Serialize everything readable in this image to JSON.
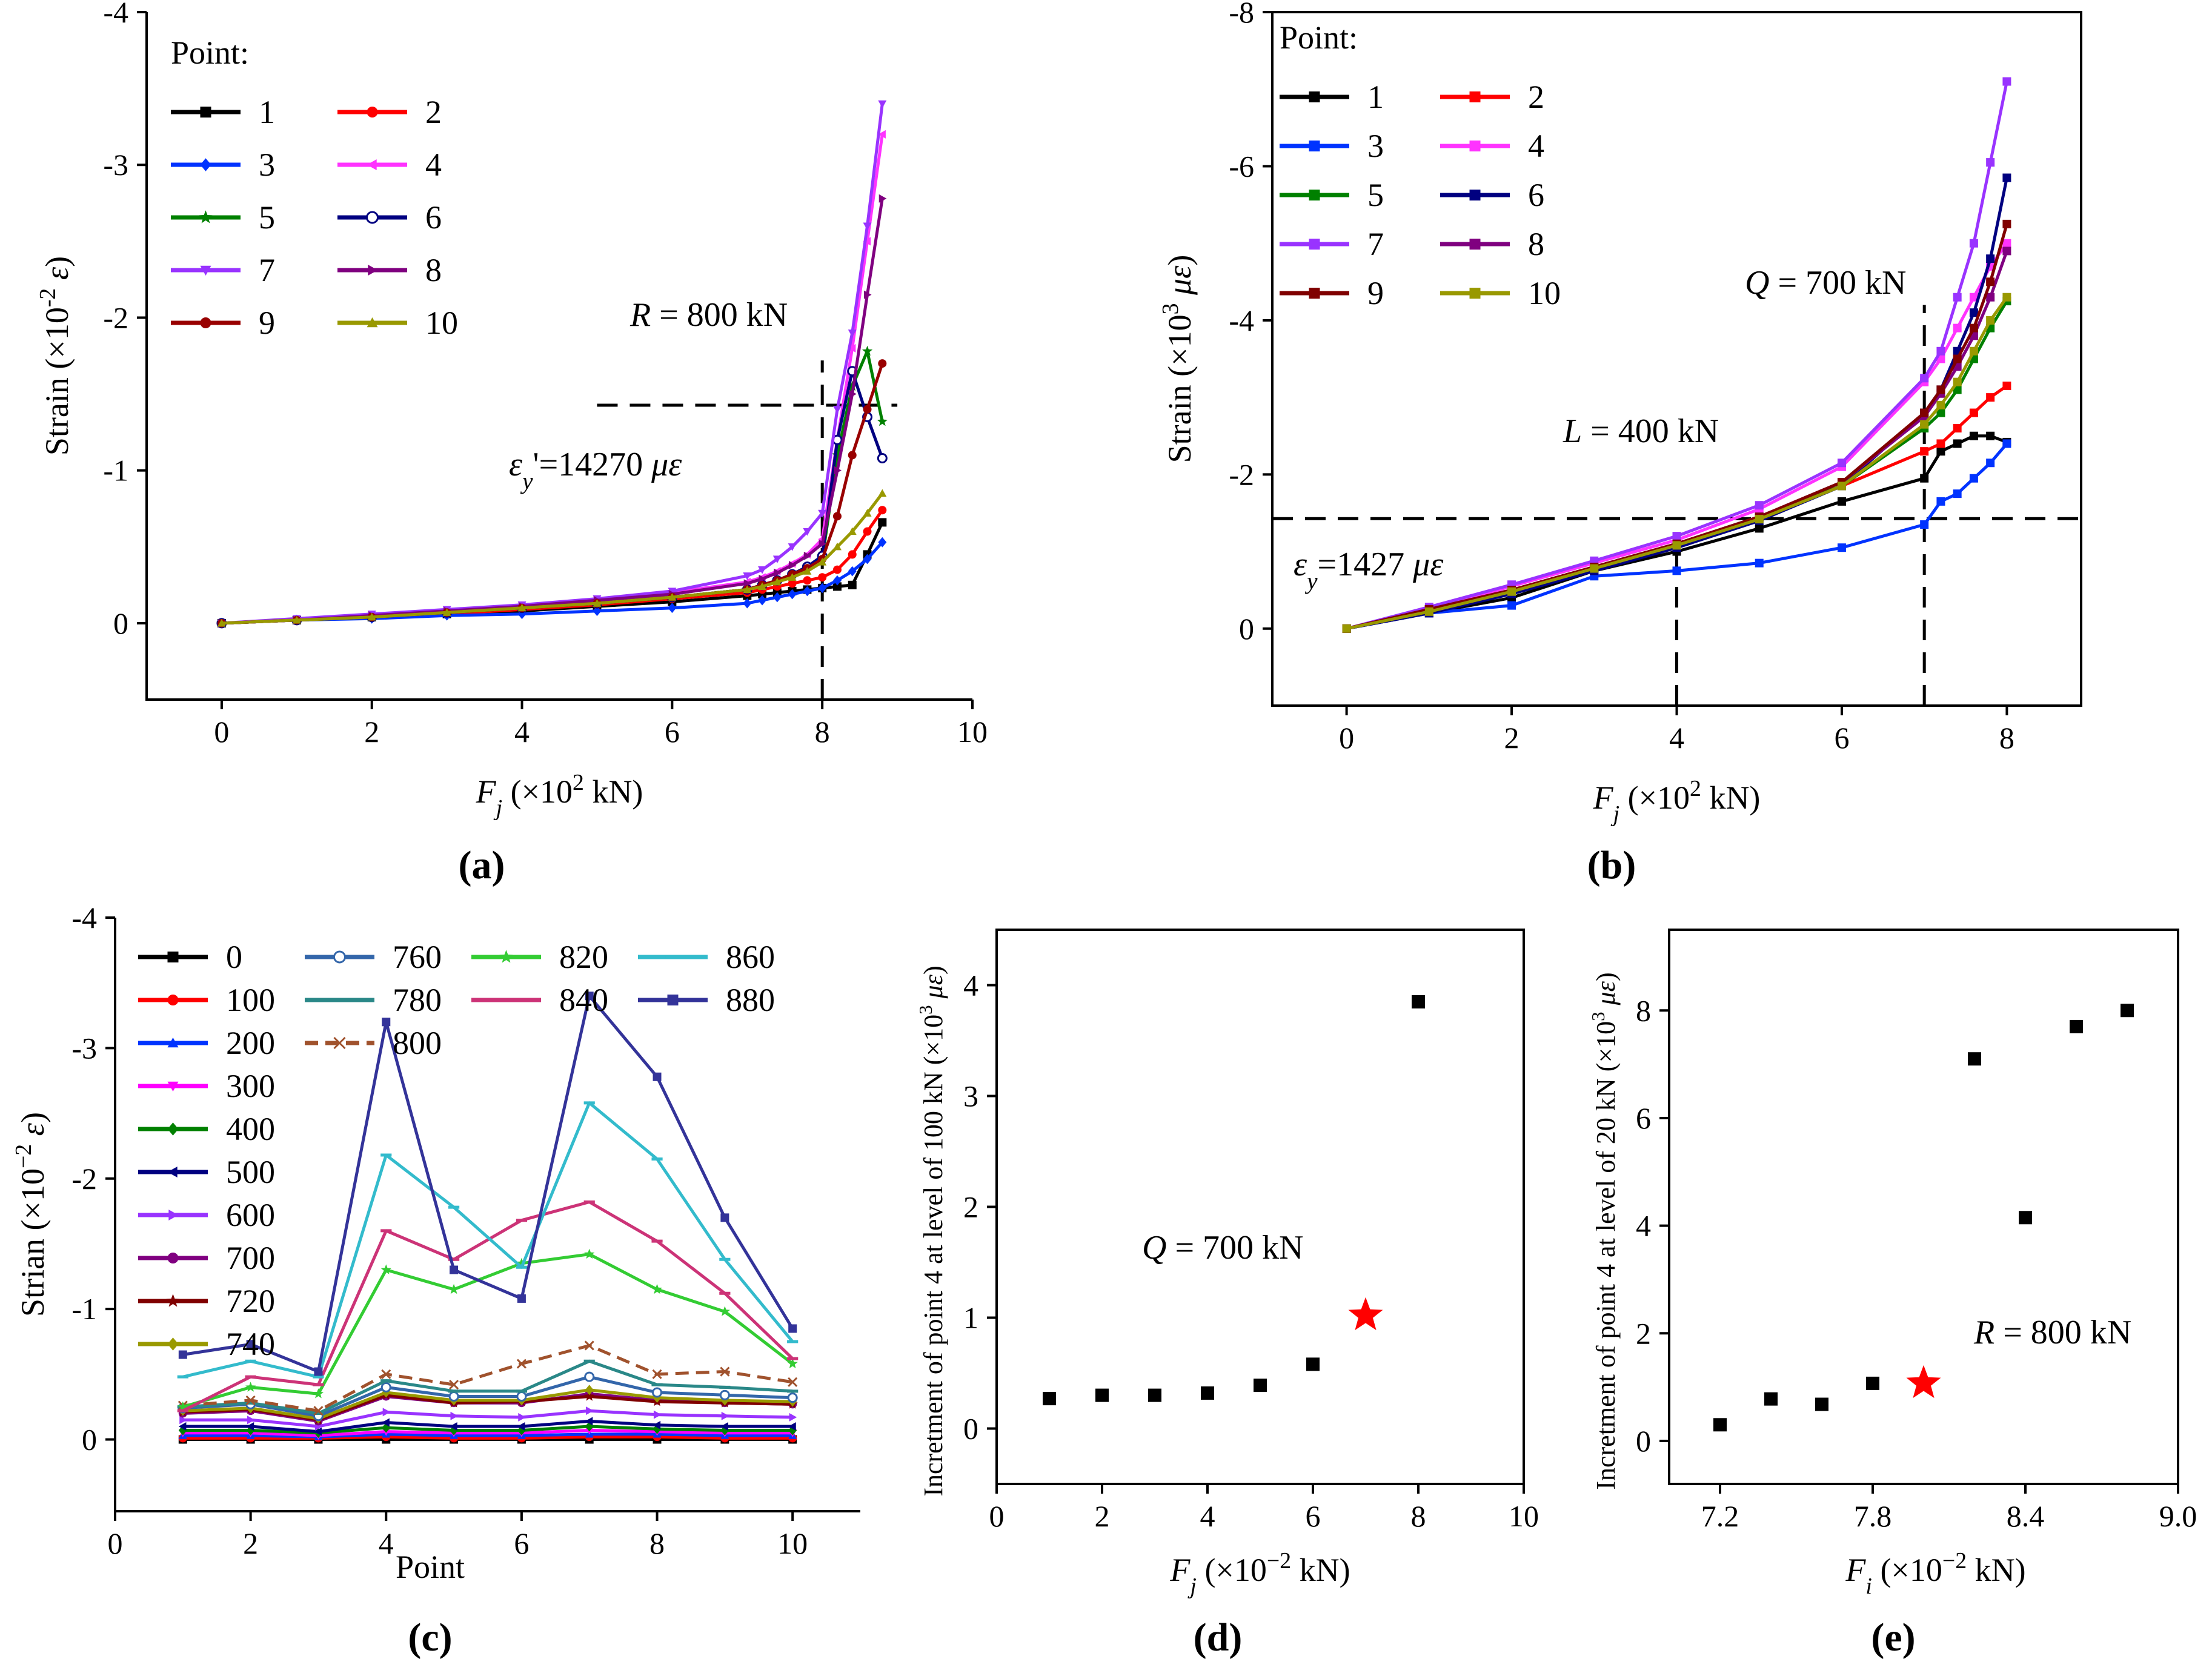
{
  "chart_data": [
    {
      "id": "a",
      "type": "line",
      "panel_label": "(a)",
      "xlabel": "F_j (×10^2 kN)",
      "ylabel": "Strain (×10^-2 ε)",
      "xlim": [
        -1,
        10
      ],
      "ylim": [
        0.5,
        -4
      ],
      "xticks": [
        0,
        2,
        4,
        6,
        8,
        10
      ],
      "yticks": [
        0,
        -1,
        -2,
        -3,
        -4
      ],
      "legend_title": "Point:",
      "x": [
        0,
        1,
        2,
        3,
        4,
        5,
        6,
        7,
        7.2,
        7.4,
        7.6,
        7.8,
        8,
        8.2,
        8.4,
        8.6,
        8.8
      ],
      "series": [
        {
          "name": "1",
          "color": "#000000",
          "marker": "square",
          "values": [
            0,
            -0.02,
            -0.04,
            -0.06,
            -0.08,
            -0.11,
            -0.14,
            -0.18,
            -0.19,
            -0.2,
            -0.21,
            -0.22,
            -0.23,
            -0.24,
            -0.25,
            -0.45,
            -0.66
          ]
        },
        {
          "name": "2",
          "color": "#ff0000",
          "marker": "circle",
          "values": [
            0,
            -0.02,
            -0.04,
            -0.06,
            -0.09,
            -0.12,
            -0.16,
            -0.2,
            -0.22,
            -0.24,
            -0.26,
            -0.28,
            -0.3,
            -0.35,
            -0.45,
            -0.6,
            -0.74
          ]
        },
        {
          "name": "3",
          "color": "#0033ff",
          "marker": "diamond",
          "values": [
            0,
            -0.02,
            -0.03,
            -0.05,
            -0.06,
            -0.08,
            -0.1,
            -0.13,
            -0.15,
            -0.17,
            -0.19,
            -0.21,
            -0.23,
            -0.28,
            -0.34,
            -0.42,
            -0.53
          ]
        },
        {
          "name": "4",
          "color": "#ff33ff",
          "marker": "triangle-left",
          "values": [
            0,
            -0.02,
            -0.05,
            -0.08,
            -0.11,
            -0.15,
            -0.2,
            -0.27,
            -0.3,
            -0.34,
            -0.39,
            -0.45,
            -0.55,
            -1.2,
            -1.8,
            -2.5,
            -3.2
          ]
        },
        {
          "name": "5",
          "color": "#008000",
          "marker": "star",
          "values": [
            0,
            -0.02,
            -0.04,
            -0.07,
            -0.1,
            -0.13,
            -0.17,
            -0.22,
            -0.25,
            -0.28,
            -0.32,
            -0.37,
            -0.42,
            -1.1,
            -1.55,
            -1.78,
            -1.32
          ]
        },
        {
          "name": "6",
          "color": "#000080",
          "marker": "circle-open",
          "values": [
            0,
            -0.02,
            -0.04,
            -0.07,
            -0.1,
            -0.13,
            -0.17,
            -0.22,
            -0.25,
            -0.28,
            -0.32,
            -0.37,
            -0.44,
            -1.2,
            -1.65,
            -1.35,
            -1.08
          ]
        },
        {
          "name": "7",
          "color": "#9933ff",
          "marker": "triangle-down",
          "values": [
            0,
            -0.03,
            -0.06,
            -0.09,
            -0.12,
            -0.16,
            -0.21,
            -0.31,
            -0.35,
            -0.42,
            -0.5,
            -0.6,
            -0.72,
            -1.4,
            -1.9,
            -2.6,
            -3.4
          ]
        },
        {
          "name": "8",
          "color": "#800080",
          "marker": "triangle-right",
          "values": [
            0,
            -0.02,
            -0.05,
            -0.08,
            -0.11,
            -0.15,
            -0.19,
            -0.26,
            -0.29,
            -0.33,
            -0.38,
            -0.44,
            -0.52,
            -1.0,
            -1.5,
            -2.15,
            -2.78
          ]
        },
        {
          "name": "9",
          "color": "#990000",
          "marker": "circle",
          "values": [
            0,
            -0.02,
            -0.04,
            -0.07,
            -0.1,
            -0.13,
            -0.17,
            -0.22,
            -0.25,
            -0.28,
            -0.32,
            -0.36,
            -0.42,
            -0.7,
            -1.1,
            -1.4,
            -1.7
          ]
        },
        {
          "name": "10",
          "color": "#999900",
          "marker": "triangle-up",
          "values": [
            0,
            -0.02,
            -0.04,
            -0.07,
            -0.1,
            -0.13,
            -0.17,
            -0.22,
            -0.24,
            -0.27,
            -0.3,
            -0.34,
            -0.4,
            -0.5,
            -0.6,
            -0.72,
            -0.85
          ]
        }
      ],
      "annotations": [
        {
          "text": "R = 800 kN"
        },
        {
          "text": "ε_y'=14270 με"
        }
      ],
      "reference_lines": [
        {
          "orientation": "vertical",
          "x": 8,
          "y_range": [
            0.5,
            -1.72
          ]
        },
        {
          "orientation": "horizontal",
          "y": -1.427,
          "x_range": [
            5,
            9
          ]
        }
      ]
    },
    {
      "id": "b",
      "type": "line",
      "panel_label": "(b)",
      "xlabel": "F_j (×10^2 kN)",
      "ylabel": "Strain (×10^3 με)",
      "xlim": [
        -0.9,
        8.9
      ],
      "ylim": [
        1,
        -8
      ],
      "xticks": [
        0,
        2,
        4,
        6,
        8
      ],
      "yticks": [
        0,
        -2,
        -4,
        -6,
        -8
      ],
      "legend_title": "Point:",
      "x": [
        0,
        1,
        2,
        3,
        4,
        5,
        6,
        7,
        7.2,
        7.4,
        7.6,
        7.8,
        8
      ],
      "series": [
        {
          "name": "1",
          "color": "#000000",
          "marker": "square",
          "values": [
            0,
            -0.2,
            -0.4,
            -0.75,
            -1.0,
            -1.3,
            -1.65,
            -1.95,
            -2.3,
            -2.4,
            -2.5,
            -2.5,
            -2.42
          ]
        },
        {
          "name": "2",
          "color": "#ff0000",
          "marker": "square",
          "values": [
            0,
            -0.25,
            -0.5,
            -0.8,
            -1.1,
            -1.45,
            -1.85,
            -2.3,
            -2.4,
            -2.6,
            -2.8,
            -3.0,
            -3.15
          ]
        },
        {
          "name": "3",
          "color": "#0033ff",
          "marker": "square",
          "values": [
            0,
            -0.2,
            -0.3,
            -0.68,
            -0.75,
            -0.85,
            -1.05,
            -1.35,
            -1.65,
            -1.75,
            -1.95,
            -2.15,
            -2.4
          ]
        },
        {
          "name": "4",
          "color": "#ff33ff",
          "marker": "square",
          "values": [
            0,
            -0.25,
            -0.55,
            -0.85,
            -1.15,
            -1.55,
            -2.1,
            -3.2,
            -3.5,
            -3.9,
            -4.3,
            -4.7,
            -5.0
          ]
        },
        {
          "name": "5",
          "color": "#008000",
          "marker": "square",
          "values": [
            0,
            -0.25,
            -0.5,
            -0.8,
            -1.1,
            -1.45,
            -1.85,
            -2.6,
            -2.8,
            -3.1,
            -3.5,
            -3.9,
            -4.25
          ]
        },
        {
          "name": "6",
          "color": "#000080",
          "marker": "square",
          "values": [
            0,
            -0.2,
            -0.45,
            -0.75,
            -1.05,
            -1.4,
            -1.85,
            -2.8,
            -3.1,
            -3.6,
            -4.1,
            -4.8,
            -5.85
          ]
        },
        {
          "name": "7",
          "color": "#9933ff",
          "marker": "square",
          "values": [
            0,
            -0.28,
            -0.57,
            -0.88,
            -1.2,
            -1.6,
            -2.15,
            -3.25,
            -3.6,
            -4.3,
            -5.0,
            -6.05,
            -7.1
          ]
        },
        {
          "name": "8",
          "color": "#800080",
          "marker": "square",
          "values": [
            0,
            -0.25,
            -0.5,
            -0.8,
            -1.1,
            -1.45,
            -1.9,
            -2.75,
            -3.05,
            -3.4,
            -3.8,
            -4.3,
            -4.9
          ]
        },
        {
          "name": "9",
          "color": "#800000",
          "marker": "square",
          "values": [
            0,
            -0.25,
            -0.5,
            -0.8,
            -1.1,
            -1.45,
            -1.9,
            -2.8,
            -3.1,
            -3.5,
            -3.9,
            -4.5,
            -5.25
          ]
        },
        {
          "name": "10",
          "color": "#999900",
          "marker": "square",
          "values": [
            0,
            -0.22,
            -0.48,
            -0.78,
            -1.08,
            -1.42,
            -1.85,
            -2.65,
            -2.9,
            -3.2,
            -3.6,
            -4.0,
            -4.3
          ]
        }
      ],
      "annotations": [
        {
          "text": "Q = 700 kN"
        },
        {
          "text": "L = 400 kN"
        },
        {
          "text": "ε_y=1427 με"
        }
      ],
      "reference_lines": [
        {
          "orientation": "vertical",
          "x": 4,
          "y_range": [
            1,
            -1.0
          ]
        },
        {
          "orientation": "vertical",
          "x": 7,
          "y_range": [
            1,
            -4.2
          ]
        },
        {
          "orientation": "horizontal",
          "y": -1.427,
          "x_range": [
            -0.9,
            8.9
          ]
        }
      ]
    },
    {
      "id": "c",
      "type": "line",
      "panel_label": "(c)",
      "xlabel": "Point",
      "ylabel": "Strian (×10^-2 ε)",
      "xlim": [
        0,
        11
      ],
      "ylim": [
        0.55,
        -4
      ],
      "xticks": [
        0,
        2,
        4,
        6,
        8,
        10
      ],
      "yticks": [
        0,
        -1,
        -2,
        -3,
        -4
      ],
      "x": [
        1,
        2,
        3,
        4,
        5,
        6,
        7,
        8,
        9,
        10
      ],
      "series": [
        {
          "name": "0",
          "color": "#000000",
          "marker": "square",
          "values": [
            0,
            0,
            0,
            0,
            0,
            0,
            0,
            0,
            0,
            0
          ]
        },
        {
          "name": "100",
          "color": "#ff0000",
          "marker": "circle",
          "values": [
            -0.01,
            -0.01,
            -0.01,
            -0.02,
            -0.01,
            -0.01,
            -0.02,
            -0.02,
            -0.01,
            -0.01
          ]
        },
        {
          "name": "200",
          "color": "#0033ff",
          "marker": "triangle-up",
          "values": [
            -0.03,
            -0.03,
            -0.02,
            -0.04,
            -0.03,
            -0.03,
            -0.04,
            -0.04,
            -0.03,
            -0.03
          ]
        },
        {
          "name": "300",
          "color": "#ff00ff",
          "marker": "triangle-down",
          "values": [
            -0.05,
            -0.05,
            -0.03,
            -0.06,
            -0.05,
            -0.05,
            -0.07,
            -0.06,
            -0.05,
            -0.05
          ]
        },
        {
          "name": "400",
          "color": "#008000",
          "marker": "diamond",
          "values": [
            -0.07,
            -0.07,
            -0.05,
            -0.09,
            -0.07,
            -0.07,
            -0.1,
            -0.08,
            -0.07,
            -0.07
          ]
        },
        {
          "name": "500",
          "color": "#000080",
          "marker": "triangle-left",
          "values": [
            -0.1,
            -0.1,
            -0.06,
            -0.13,
            -0.1,
            -0.1,
            -0.14,
            -0.11,
            -0.1,
            -0.1
          ]
        },
        {
          "name": "600",
          "color": "#9933ff",
          "marker": "triangle-right",
          "values": [
            -0.15,
            -0.15,
            -0.1,
            -0.21,
            -0.18,
            -0.17,
            -0.22,
            -0.19,
            -0.18,
            -0.17
          ]
        },
        {
          "name": "700",
          "color": "#800080",
          "marker": "circle",
          "values": [
            -0.2,
            -0.22,
            -0.14,
            -0.33,
            -0.28,
            -0.28,
            -0.35,
            -0.3,
            -0.28,
            -0.27
          ]
        },
        {
          "name": "720",
          "color": "#800000",
          "marker": "star",
          "values": [
            -0.21,
            -0.23,
            -0.15,
            -0.34,
            -0.28,
            -0.29,
            -0.33,
            -0.29,
            -0.28,
            -0.27
          ]
        },
        {
          "name": "740",
          "color": "#999900",
          "marker": "diamond",
          "values": [
            -0.22,
            -0.24,
            -0.16,
            -0.36,
            -0.3,
            -0.3,
            -0.38,
            -0.32,
            -0.3,
            -0.29
          ]
        },
        {
          "name": "760",
          "color": "#3366aa",
          "marker": "circle-open",
          "values": [
            -0.24,
            -0.27,
            -0.18,
            -0.4,
            -0.33,
            -0.33,
            -0.48,
            -0.36,
            -0.34,
            -0.32
          ]
        },
        {
          "name": "780",
          "color": "#2a8888",
          "marker": "dash",
          "values": [
            -0.25,
            -0.28,
            -0.2,
            -0.45,
            -0.37,
            -0.37,
            -0.6,
            -0.42,
            -0.4,
            -0.37
          ]
        },
        {
          "name": "800",
          "color": "#a0522d",
          "marker": "x",
          "dashed": true,
          "values": [
            -0.26,
            -0.3,
            -0.22,
            -0.5,
            -0.42,
            -0.58,
            -0.72,
            -0.5,
            -0.52,
            -0.44
          ]
        },
        {
          "name": "820",
          "color": "#33cc33",
          "marker": "star",
          "values": [
            -0.25,
            -0.4,
            -0.35,
            -1.3,
            -1.15,
            -1.35,
            -1.42,
            -1.15,
            -0.98,
            -0.58
          ]
        },
        {
          "name": "840",
          "color": "#cc3377",
          "marker": "dash",
          "values": [
            -0.22,
            -0.48,
            -0.42,
            -1.6,
            -1.38,
            -1.68,
            -1.82,
            -1.52,
            -1.12,
            -0.62
          ]
        },
        {
          "name": "860",
          "color": "#33bbcc",
          "marker": "dash",
          "values": [
            -0.48,
            -0.6,
            -0.48,
            -2.18,
            -1.78,
            -1.32,
            -2.58,
            -2.15,
            -1.38,
            -0.75
          ]
        },
        {
          "name": "880",
          "color": "#333399",
          "marker": "square",
          "values": [
            -0.65,
            -0.73,
            -0.52,
            -3.2,
            -1.3,
            -1.08,
            -3.4,
            -2.78,
            -1.7,
            -0.85
          ]
        }
      ]
    },
    {
      "id": "d",
      "type": "scatter",
      "panel_label": "(d)",
      "xlabel": "F_j (×10^-2 kN)",
      "ylabel": "Incretment of point 4 at level of 100 kN (×10^3 με)",
      "xlim": [
        0,
        10
      ],
      "ylim": [
        -0.5,
        4.5
      ],
      "xticks": [
        0,
        2,
        4,
        6,
        8,
        10
      ],
      "yticks": [
        0,
        1,
        2,
        3,
        4
      ],
      "points": [
        {
          "x": 1,
          "y": 0.27
        },
        {
          "x": 2,
          "y": 0.3
        },
        {
          "x": 3,
          "y": 0.3
        },
        {
          "x": 4,
          "y": 0.32
        },
        {
          "x": 5,
          "y": 0.39
        },
        {
          "x": 6,
          "y": 0.58
        },
        {
          "x": 8,
          "y": 3.85
        }
      ],
      "highlight": {
        "x": 7,
        "y": 1.02,
        "color": "#ff0000",
        "marker": "star"
      },
      "annotations": [
        {
          "text": "Q = 700 kN"
        }
      ]
    },
    {
      "id": "e",
      "type": "scatter",
      "panel_label": "(e)",
      "xlabel": "F_i (×10^-2 kN)",
      "ylabel": "Incretment of point 4 at level of 20 kN (×10^3 με)",
      "xlim": [
        7.0,
        9.0
      ],
      "ylim": [
        -0.8,
        9.5
      ],
      "xticks": [
        7.2,
        7.8,
        8.4,
        9.0
      ],
      "xtick_labels": [
        "7.2",
        "7.8",
        "8.4",
        "9.0"
      ],
      "yticks": [
        0,
        2,
        4,
        6,
        8
      ],
      "points": [
        {
          "x": 7.2,
          "y": 0.3
        },
        {
          "x": 7.4,
          "y": 0.78
        },
        {
          "x": 7.6,
          "y": 0.68
        },
        {
          "x": 7.8,
          "y": 1.07
        },
        {
          "x": 8.2,
          "y": 7.1
        },
        {
          "x": 8.4,
          "y": 4.15
        },
        {
          "x": 8.6,
          "y": 7.7
        },
        {
          "x": 8.8,
          "y": 8.0
        }
      ],
      "highlight": {
        "x": 8.0,
        "y": 1.07,
        "color": "#ff0000",
        "marker": "star"
      },
      "annotations": [
        {
          "text": "R = 800 kN"
        }
      ]
    }
  ]
}
